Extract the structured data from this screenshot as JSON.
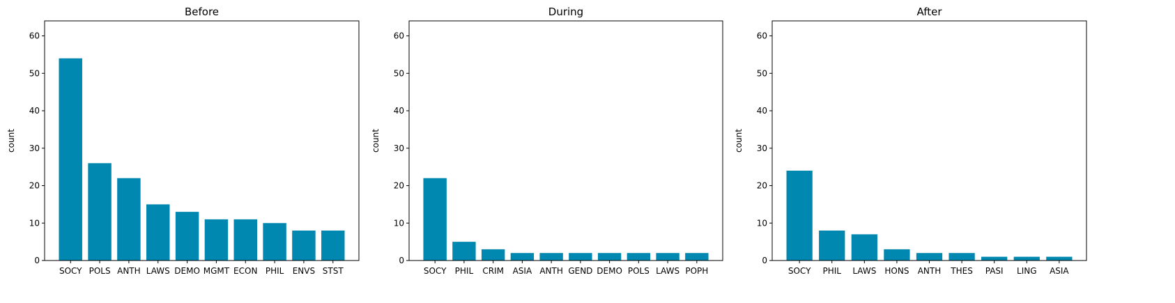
{
  "chart_data": [
    {
      "type": "bar",
      "title": "Before",
      "xlabel": "",
      "ylabel": "count",
      "ylim": [
        0,
        64
      ],
      "yticks": [
        0,
        10,
        20,
        30,
        40,
        50,
        60
      ],
      "grid": false,
      "color": "#0088b0",
      "categories": [
        "SOCY",
        "POLS",
        "ANTH",
        "LAWS",
        "DEMO",
        "MGMT",
        "ECON",
        "PHIL",
        "ENVS",
        "STST"
      ],
      "values": [
        54,
        26,
        22,
        15,
        13,
        11,
        11,
        10,
        8,
        8
      ]
    },
    {
      "type": "bar",
      "title": "During",
      "xlabel": "",
      "ylabel": "count",
      "ylim": [
        0,
        64
      ],
      "yticks": [
        0,
        10,
        20,
        30,
        40,
        50,
        60
      ],
      "grid": false,
      "color": "#0088b0",
      "categories": [
        "SOCY",
        "PHIL",
        "CRIM",
        "ASIA",
        "ANTH",
        "GEND",
        "DEMO",
        "POLS",
        "LAWS",
        "POPH"
      ],
      "values": [
        22,
        5,
        3,
        2,
        2,
        2,
        2,
        2,
        2,
        2
      ]
    },
    {
      "type": "bar",
      "title": "After",
      "xlabel": "",
      "ylabel": "count",
      "ylim": [
        0,
        64
      ],
      "yticks": [
        0,
        10,
        20,
        30,
        40,
        50,
        60
      ],
      "grid": false,
      "color": "#0088b0",
      "categories": [
        "SOCY",
        "PHIL",
        "LAWS",
        "HONS",
        "ANTH",
        "THES",
        "PASI",
        "LING",
        "ASIA"
      ],
      "values": [
        24,
        8,
        7,
        3,
        2,
        2,
        1,
        1,
        1
      ]
    }
  ]
}
